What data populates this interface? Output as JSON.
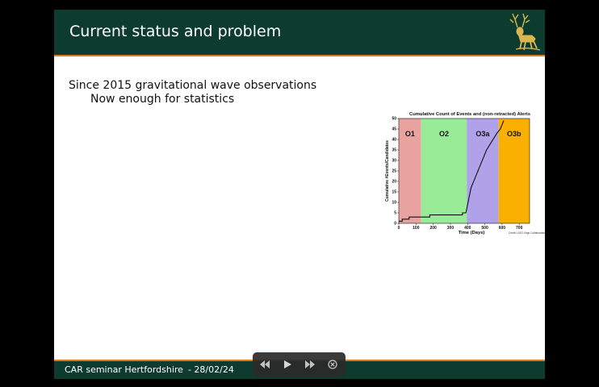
{
  "slide": {
    "title": "Current status and problem",
    "bullets": [
      "Since 2015 gravitational wave observations",
      "Now enough for statistics"
    ]
  },
  "chart_data": {
    "type": "line",
    "title": "Cumulative Count of Events and (non-retracted) Alerts",
    "xlabel": "Time (Days)",
    "ylabel": "Cumulative #Events/Candidates",
    "xlim": [
      0,
      760
    ],
    "ylim": [
      0,
      50
    ],
    "xticks": [
      0,
      100,
      200,
      300,
      400,
      500,
      600,
      700
    ],
    "yticks": [
      0,
      5,
      10,
      15,
      20,
      25,
      30,
      35,
      40,
      45,
      50
    ],
    "regions": [
      {
        "label": "O1",
        "start": 0,
        "end": 130,
        "color": "#e8a3a0"
      },
      {
        "label": "O2",
        "start": 130,
        "end": 395,
        "color": "#99ec97"
      },
      {
        "label": "O3a",
        "start": 395,
        "end": 580,
        "color": "#b0a2e8"
      },
      {
        "label": "O3b",
        "start": 580,
        "end": 760,
        "color": "#f9b000"
      }
    ],
    "series": [
      {
        "name": "cumulative",
        "points": [
          [
            0,
            1
          ],
          [
            20,
            1
          ],
          [
            20,
            2
          ],
          [
            60,
            2
          ],
          [
            60,
            3
          ],
          [
            120,
            3
          ],
          [
            120,
            3
          ],
          [
            130,
            3
          ],
          [
            180,
            3
          ],
          [
            180,
            4
          ],
          [
            370,
            4
          ],
          [
            370,
            5
          ],
          [
            390,
            5
          ],
          [
            395,
            7
          ],
          [
            400,
            9
          ],
          [
            405,
            11
          ],
          [
            410,
            13
          ],
          [
            415,
            15
          ],
          [
            420,
            17
          ],
          [
            430,
            19
          ],
          [
            440,
            21
          ],
          [
            450,
            23
          ],
          [
            460,
            25
          ],
          [
            470,
            27
          ],
          [
            480,
            29
          ],
          [
            490,
            31
          ],
          [
            500,
            33
          ],
          [
            510,
            35
          ],
          [
            525,
            37
          ],
          [
            540,
            39
          ],
          [
            555,
            41
          ],
          [
            570,
            43
          ],
          [
            580,
            44
          ],
          [
            590,
            45
          ],
          [
            600,
            47
          ],
          [
            610,
            49
          ]
        ]
      }
    ],
    "credit": "Credit: LIGO-Virgo Collaboration"
  },
  "footer": {
    "label": "CAR seminar Hertfordshire",
    "date": "- 28/02/24"
  },
  "player": {
    "icons": [
      "rewind-icon",
      "play-icon",
      "fast-forward-icon",
      "close-icon"
    ]
  }
}
